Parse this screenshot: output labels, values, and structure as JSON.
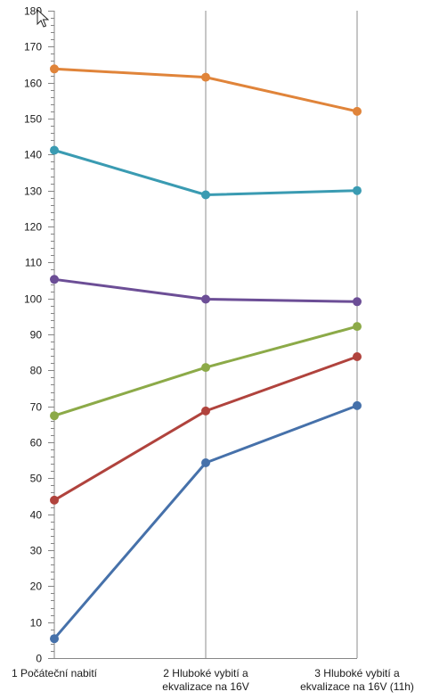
{
  "chart_data": {
    "type": "line",
    "title": "",
    "xlabel": "",
    "ylabel": "",
    "ylim": [
      0,
      180
    ],
    "y_major_step": 10,
    "y_minor_step": 2,
    "grid": "vertical",
    "categories": [
      [
        "1 Počáteční nabití"
      ],
      [
        "2 Hluboké vybití a",
        "ekvalizace na 16V"
      ],
      [
        "3 Hluboké vybití a",
        "ekvalizace na 16V (11h)"
      ]
    ],
    "series": [
      {
        "color": "#e0843a",
        "values": [
          163.8,
          161.5,
          152.0
        ]
      },
      {
        "color": "#3a9bb2",
        "values": [
          141.2,
          128.8,
          130.0
        ]
      },
      {
        "color": "#6c4e96",
        "values": [
          105.3,
          99.8,
          99.1
        ]
      },
      {
        "color": "#8caa48",
        "values": [
          67.4,
          80.8,
          92.2
        ]
      },
      {
        "color": "#b0433d",
        "values": [
          43.9,
          68.7,
          83.8
        ]
      },
      {
        "color": "#4671aa",
        "values": [
          5.4,
          54.3,
          70.2
        ]
      }
    ]
  },
  "axis_color": "#868686",
  "grid_color": "#8c8c8c"
}
